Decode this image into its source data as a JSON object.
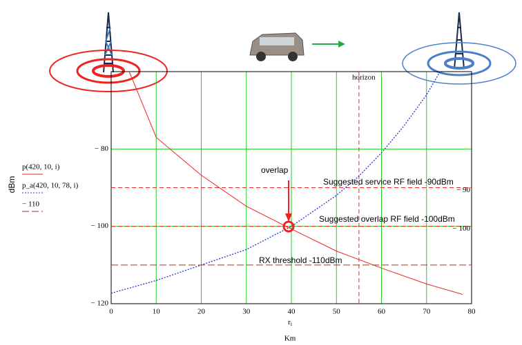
{
  "chart_data": {
    "type": "line",
    "y_label": "dBm",
    "x_label": "r",
    "x_label_sub": "i",
    "x_unit": "Km",
    "xlim": [
      0,
      80
    ],
    "xticks": [
      0,
      10,
      20,
      30,
      40,
      50,
      60,
      70,
      80
    ],
    "ylim": [
      -120,
      -60
    ],
    "yticks": [
      {
        "value": -80,
        "label": "− 80"
      },
      {
        "value": -100,
        "label": "− 100"
      },
      {
        "value": -120,
        "label": "− 120"
      }
    ],
    "grid": true,
    "grid_color": "#22cc22",
    "series": [
      {
        "name": "p(420, 10, i)",
        "color": "#ee2222",
        "dash": "solid",
        "x": [
          4,
          5,
          10,
          20,
          30,
          40,
          50,
          60,
          70,
          78
        ],
        "values": [
          -60,
          -62.8,
          -77,
          -86.8,
          -94.8,
          -100.7,
          -106.4,
          -110.8,
          -114.9,
          -117.6
        ]
      },
      {
        "name": "p_a(420, 10, 78, i)",
        "color": "#2233cc",
        "dash": "dotted",
        "x": [
          0,
          10,
          20,
          30,
          40,
          50,
          55,
          60,
          65,
          70,
          73
        ],
        "values": [
          -117.3,
          -114,
          -110,
          -106,
          -100,
          -92,
          -87,
          -81,
          -74,
          -66,
          -60
        ]
      },
      {
        "name": "− 110",
        "color": "#8b3a2a",
        "dash": "long",
        "x": [
          0,
          80
        ],
        "values": [
          -110,
          -110
        ]
      }
    ],
    "y_markers": [
      {
        "value": -90,
        "label": "− 90"
      },
      {
        "value": -100,
        "label": "− 100"
      }
    ],
    "marker_color": "#ee2222",
    "x_markers": [
      55
    ],
    "annotations": [
      "horizon",
      "overlap",
      "Suggested service RF field -90dBm",
      "Suggested overlap RF field -100dBm",
      "RX threshold -110dBm"
    ]
  }
}
